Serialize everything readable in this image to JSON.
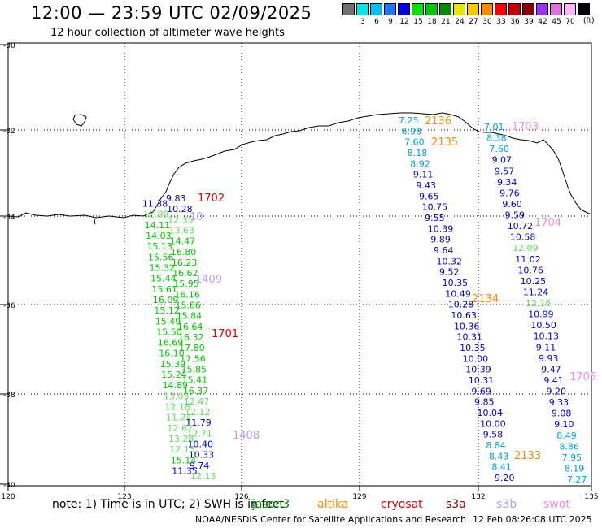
{
  "header": {
    "title": "12:00 — 23:59 UTC 02/09/2025",
    "subtitle": "12 hour collection of altimeter wave heights"
  },
  "colorbar": {
    "unit": "(ft)",
    "bins": [
      {
        "label": "",
        "color": "#707070"
      },
      {
        "label": "3",
        "color": "#00e6e6"
      },
      {
        "label": "6",
        "color": "#00bfff"
      },
      {
        "label": "9",
        "color": "#1e78ff"
      },
      {
        "label": "12",
        "color": "#0000e6"
      },
      {
        "label": "15",
        "color": "#00e600"
      },
      {
        "label": "18",
        "color": "#00c800"
      },
      {
        "label": "21",
        "color": "#008c00"
      },
      {
        "label": "24",
        "color": "#e6e600"
      },
      {
        "label": "27",
        "color": "#ffc800"
      },
      {
        "label": "30",
        "color": "#ff8c00"
      },
      {
        "label": "33",
        "color": "#ff0000"
      },
      {
        "label": "36",
        "color": "#c80000"
      },
      {
        "label": "39",
        "color": "#8b0000"
      },
      {
        "label": "42",
        "color": "#9b30ff"
      },
      {
        "label": "45",
        "color": "#e070e0"
      },
      {
        "label": "70",
        "color": "#ffb4ff"
      },
      {
        "label": "",
        "color": "#000000"
      }
    ]
  },
  "axes": {
    "lat_labels": [
      "-30",
      "-32",
      "-34",
      "-36",
      "-38",
      "-40"
    ],
    "lon_labels": [
      "120",
      "123",
      "126",
      "129",
      "132",
      "135"
    ]
  },
  "map": {
    "pass_labels": [
      {
        "text": "1702",
        "color": "#e60000"
      },
      {
        "text": "1701",
        "color": "#e60000"
      },
      {
        "text": "2136",
        "color": "#ff8c00"
      },
      {
        "text": "2135",
        "color": "#ff8c00"
      },
      {
        "text": "2134",
        "color": "#ff8c00"
      },
      {
        "text": "2133",
        "color": "#ff8c00"
      },
      {
        "text": "1703",
        "color": "#ff8cd2"
      },
      {
        "text": "1704",
        "color": "#ff8cd2"
      },
      {
        "text": "1705",
        "color": "#ff8cd2"
      },
      {
        "text": "1409",
        "color": "#b4a0e6"
      },
      {
        "text": "1408",
        "color": "#b4a0e6"
      },
      {
        "text": "10",
        "color": "#b4a0e6"
      }
    ],
    "track_a": {
      "color_blue": "#0000cd",
      "color_green": "#00c800",
      "color_lgreen": "#64dc64",
      "values": [
        {
          "v": "9.83",
          "c": "blue"
        },
        {
          "v": "11.38",
          "c": "blue"
        },
        {
          "v": "10.28",
          "c": "blue"
        },
        {
          "v": "12.99",
          "c": "lgreen"
        },
        {
          "v": "12.35",
          "c": "lgreen"
        },
        {
          "v": "14.11",
          "c": "green"
        },
        {
          "v": "13.63",
          "c": "lgreen"
        },
        {
          "v": "14.03",
          "c": "green"
        },
        {
          "v": "14.47",
          "c": "green"
        },
        {
          "v": "15.13",
          "c": "green"
        },
        {
          "v": "16.80",
          "c": "green"
        },
        {
          "v": "15.56",
          "c": "green"
        },
        {
          "v": "16.23",
          "c": "green"
        },
        {
          "v": "15.32",
          "c": "green"
        },
        {
          "v": "16.62",
          "c": "green"
        },
        {
          "v": "15.44",
          "c": "green"
        },
        {
          "v": "15.95",
          "c": "green"
        },
        {
          "v": "15.61",
          "c": "green"
        },
        {
          "v": "16.16",
          "c": "green"
        },
        {
          "v": "16.09",
          "c": "green"
        },
        {
          "v": "15.86",
          "c": "green"
        },
        {
          "v": "15.12",
          "c": "green"
        },
        {
          "v": "15.84",
          "c": "green"
        },
        {
          "v": "15.49",
          "c": "green"
        },
        {
          "v": "16.64",
          "c": "green"
        },
        {
          "v": "15.50",
          "c": "green"
        },
        {
          "v": "16.32",
          "c": "green"
        },
        {
          "v": "16.69",
          "c": "green"
        },
        {
          "v": "17.80",
          "c": "green"
        },
        {
          "v": "16.10",
          "c": "green"
        },
        {
          "v": "17.56",
          "c": "green"
        },
        {
          "v": "15.39",
          "c": "green"
        },
        {
          "v": "15.85",
          "c": "green"
        },
        {
          "v": "15.24",
          "c": "green"
        },
        {
          "v": "15.41",
          "c": "green"
        },
        {
          "v": "14.89",
          "c": "green"
        },
        {
          "v": "16.37",
          "c": "green"
        },
        {
          "v": "13.05",
          "c": "lgreen"
        },
        {
          "v": "12.47",
          "c": "lgreen"
        },
        {
          "v": "12.18",
          "c": "lgreen"
        },
        {
          "v": "12.12",
          "c": "lgreen"
        },
        {
          "v": "11.24",
          "c": "lgreen"
        },
        {
          "v": "11.79",
          "c": "blue"
        },
        {
          "v": "12.62",
          "c": "lgreen"
        },
        {
          "v": "12.71",
          "c": "lgreen"
        },
        {
          "v": "13.28",
          "c": "lgreen"
        },
        {
          "v": "10.40",
          "c": "blue"
        },
        {
          "v": "12.13",
          "c": "lgreen"
        },
        {
          "v": "10.33",
          "c": "blue"
        },
        {
          "v": "15.14",
          "c": "green"
        },
        {
          "v": "9.74",
          "c": "blue"
        },
        {
          "v": "11.35",
          "c": "blue"
        },
        {
          "v": "12.13",
          "c": "lgreen"
        }
      ]
    },
    "track_b": {
      "color_blue": "#0000cd",
      "color_cyan": "#00a0dc",
      "values": [
        {
          "v": "7.25",
          "c": "cyan"
        },
        {
          "v": "6.98",
          "c": "cyan"
        },
        {
          "v": "7.60",
          "c": "cyan"
        },
        {
          "v": "8.18",
          "c": "cyan"
        },
        {
          "v": "8.92",
          "c": "cyan"
        },
        {
          "v": "9.11",
          "c": "blue"
        },
        {
          "v": "9.43",
          "c": "blue"
        },
        {
          "v": "9.65",
          "c": "blue"
        },
        {
          "v": "10.75",
          "c": "blue"
        },
        {
          "v": "9.55",
          "c": "blue"
        },
        {
          "v": "10.39",
          "c": "blue"
        },
        {
          "v": "9.89",
          "c": "blue"
        },
        {
          "v": "9.64",
          "c": "blue"
        },
        {
          "v": "10.32",
          "c": "blue"
        },
        {
          "v": "9.52",
          "c": "blue"
        },
        {
          "v": "10.35",
          "c": "blue"
        },
        {
          "v": "10.49",
          "c": "blue"
        },
        {
          "v": "10.28",
          "c": "blue"
        },
        {
          "v": "10.63",
          "c": "blue"
        },
        {
          "v": "10.36",
          "c": "blue"
        },
        {
          "v": "10.31",
          "c": "blue"
        },
        {
          "v": "10.35",
          "c": "blue"
        },
        {
          "v": "10.00",
          "c": "blue"
        },
        {
          "v": "10.39",
          "c": "blue"
        },
        {
          "v": "10.31",
          "c": "blue"
        },
        {
          "v": "9.69",
          "c": "blue"
        },
        {
          "v": "9.85",
          "c": "blue"
        },
        {
          "v": "10.04",
          "c": "blue"
        },
        {
          "v": "10.00",
          "c": "blue"
        },
        {
          "v": "9.58",
          "c": "blue"
        },
        {
          "v": "8.84",
          "c": "cyan"
        },
        {
          "v": "8.43",
          "c": "cyan"
        },
        {
          "v": "8.41",
          "c": "cyan"
        },
        {
          "v": "9.20",
          "c": "blue"
        }
      ]
    },
    "track_c": {
      "color_blue": "#0000cd",
      "color_cyan": "#00a0dc",
      "color_lgreen": "#64dc64",
      "values": [
        {
          "v": "7.01",
          "c": "cyan"
        },
        {
          "v": "8.38",
          "c": "cyan"
        },
        {
          "v": "7.60",
          "c": "cyan"
        },
        {
          "v": "9.07",
          "c": "blue"
        },
        {
          "v": "9.57",
          "c": "blue"
        },
        {
          "v": "9.34",
          "c": "blue"
        },
        {
          "v": "9.76",
          "c": "blue"
        },
        {
          "v": "9.60",
          "c": "blue"
        },
        {
          "v": "9.59",
          "c": "blue"
        },
        {
          "v": "10.72",
          "c": "blue"
        },
        {
          "v": "10.58",
          "c": "blue"
        },
        {
          "v": "12.09",
          "c": "lgreen"
        },
        {
          "v": "11.02",
          "c": "blue"
        },
        {
          "v": "10.76",
          "c": "blue"
        },
        {
          "v": "10.25",
          "c": "blue"
        },
        {
          "v": "11.24",
          "c": "blue"
        },
        {
          "v": "12.16",
          "c": "lgreen"
        },
        {
          "v": "10.99",
          "c": "blue"
        },
        {
          "v": "10.50",
          "c": "blue"
        },
        {
          "v": "10.13",
          "c": "blue"
        },
        {
          "v": "9.11",
          "c": "blue"
        },
        {
          "v": "9.93",
          "c": "blue"
        },
        {
          "v": "9.47",
          "c": "blue"
        },
        {
          "v": "9.41",
          "c": "blue"
        },
        {
          "v": "9.20",
          "c": "blue"
        },
        {
          "v": "9.33",
          "c": "blue"
        },
        {
          "v": "9.08",
          "c": "blue"
        },
        {
          "v": "9.10",
          "c": "blue"
        },
        {
          "v": "8.49",
          "c": "cyan"
        },
        {
          "v": "8.86",
          "c": "cyan"
        },
        {
          "v": "7.95",
          "c": "cyan"
        },
        {
          "v": "8.19",
          "c": "cyan"
        },
        {
          "v": "7.27",
          "c": "cyan"
        }
      ]
    }
  },
  "footer": {
    "note": "note:  1) Time is in UTC; 2) SWH is in feet",
    "satellites": [
      {
        "name": "jason3",
        "color": "#008c00"
      },
      {
        "name": "altika",
        "color": "#ff8c00"
      },
      {
        "name": "cryosat",
        "color": "#e60000"
      },
      {
        "name": "s3a",
        "color": "#8b0000"
      },
      {
        "name": "s3b",
        "color": "#b4a0e6"
      },
      {
        "name": "swot",
        "color": "#ff8cd2"
      }
    ],
    "credit": "NOAA/NESDIS Center for Satellite Applications and Research",
    "timestamp": "12 Feb 08:26:08 UTC 2025"
  }
}
